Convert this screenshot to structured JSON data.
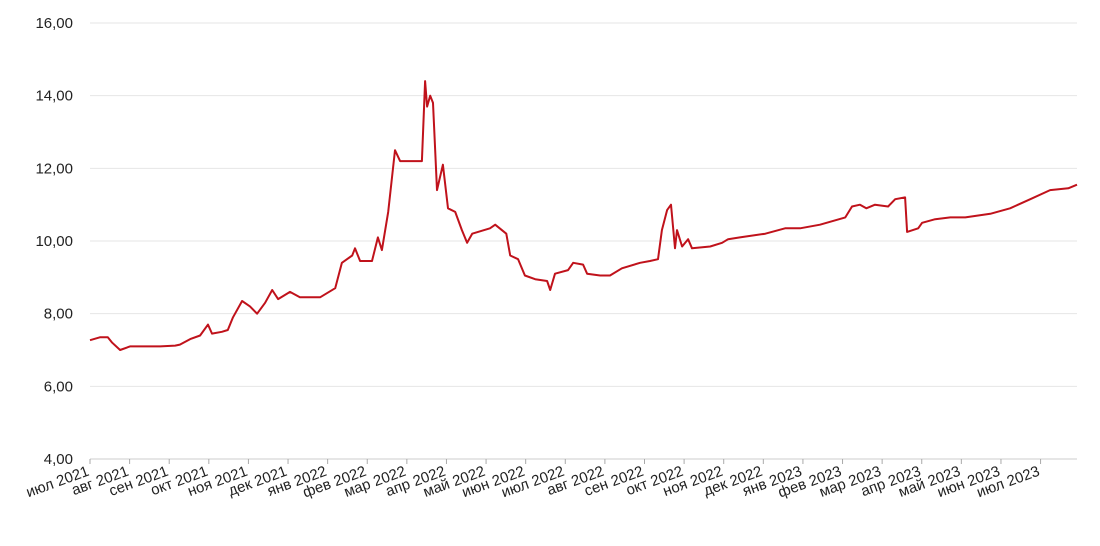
{
  "chart_data": {
    "type": "line",
    "color": "#c0121b",
    "grid": true,
    "x": [
      0,
      0.25,
      0.45,
      0.56,
      0.76,
      1.01,
      1.39,
      1.77,
      2.15,
      2.27,
      2.53,
      2.78,
      2.98,
      3.08,
      3.33,
      3.48,
      3.61,
      3.84,
      4.04,
      4.22,
      4.42,
      4.6,
      4.75,
      5.05,
      5.3,
      5.81,
      6.19,
      6.36,
      6.49,
      6.62,
      6.69,
      6.82,
      7.12,
      7.27,
      7.37,
      7.53,
      7.7,
      7.83,
      8.38,
      8.46,
      8.51,
      8.59,
      8.66,
      8.76,
      8.91,
      9.04,
      9.22,
      9.39,
      9.52,
      9.65,
      10.1,
      10.23,
      10.51,
      10.61,
      10.81,
      10.98,
      11.24,
      11.54,
      11.62,
      11.74,
      12.07,
      12.2,
      12.45,
      12.55,
      12.88,
      13.13,
      13.43,
      13.89,
      14.14,
      14.34,
      14.44,
      14.57,
      14.67,
      14.77,
      14.82,
      14.95,
      15.1,
      15.2,
      15.66,
      15.96,
      16.11,
      16.41,
      17.05,
      17.55,
      17.93,
      18.43,
      19.07,
      19.24,
      19.44,
      19.6,
      19.82,
      20.15,
      20.33,
      20.58,
      20.63,
      20.91,
      21.01,
      21.34,
      21.72,
      22.1,
      22.73,
      23.23,
      23.74,
      24.24,
      24.7,
      24.92
    ],
    "values": [
      7.27,
      7.35,
      7.35,
      7.2,
      7.0,
      7.1,
      7.1,
      7.1,
      7.12,
      7.15,
      7.3,
      7.4,
      7.7,
      7.45,
      7.5,
      7.55,
      7.9,
      8.35,
      8.2,
      8.0,
      8.3,
      8.65,
      8.4,
      8.6,
      8.45,
      8.45,
      8.7,
      9.4,
      9.5,
      9.6,
      9.8,
      9.45,
      9.45,
      10.1,
      9.75,
      10.8,
      12.5,
      12.2,
      12.2,
      14.4,
      13.7,
      14.0,
      13.8,
      11.4,
      12.1,
      10.9,
      10.8,
      10.3,
      9.95,
      10.2,
      10.35,
      10.45,
      10.2,
      9.6,
      9.5,
      9.05,
      8.95,
      8.9,
      8.65,
      9.1,
      9.2,
      9.4,
      9.35,
      9.1,
      9.05,
      9.05,
      9.25,
      9.4,
      9.45,
      9.5,
      10.3,
      10.85,
      11.0,
      9.8,
      10.3,
      9.85,
      10.05,
      9.8,
      9.85,
      9.95,
      10.05,
      10.1,
      10.2,
      10.35,
      10.35,
      10.45,
      10.65,
      10.95,
      11.0,
      10.9,
      11.0,
      10.95,
      11.15,
      11.2,
      10.25,
      10.35,
      10.5,
      10.6,
      10.65,
      10.65,
      10.75,
      10.9,
      11.15,
      11.4,
      11.45,
      11.55
    ],
    "xlim": [
      0,
      24.92
    ],
    "xticks": [
      {
        "value": 0,
        "label": "июл 2021"
      },
      {
        "value": 1,
        "label": "авг 2021"
      },
      {
        "value": 2,
        "label": "сен 2021"
      },
      {
        "value": 3,
        "label": "окт 2021"
      },
      {
        "value": 4,
        "label": "ноя 2021"
      },
      {
        "value": 5,
        "label": "дек 2021"
      },
      {
        "value": 6,
        "label": "янв 2022"
      },
      {
        "value": 7,
        "label": "фев 2022"
      },
      {
        "value": 8,
        "label": "мар 2022"
      },
      {
        "value": 9,
        "label": "апр 2022"
      },
      {
        "value": 10,
        "label": "май 2022"
      },
      {
        "value": 11,
        "label": "июн 2022"
      },
      {
        "value": 12,
        "label": "июл 2022"
      },
      {
        "value": 13,
        "label": "авг 2022"
      },
      {
        "value": 14,
        "label": "сен 2022"
      },
      {
        "value": 15,
        "label": "окт 2022"
      },
      {
        "value": 16,
        "label": "ноя 2022"
      },
      {
        "value": 17,
        "label": "дек 2022"
      },
      {
        "value": 18,
        "label": "янв 2023"
      },
      {
        "value": 19,
        "label": "фев 2023"
      },
      {
        "value": 20,
        "label": "мар 2023"
      },
      {
        "value": 21,
        "label": "апр 2023"
      },
      {
        "value": 22,
        "label": "май 2023"
      },
      {
        "value": 23,
        "label": "июн 2023"
      },
      {
        "value": 24,
        "label": "июл 2023"
      }
    ],
    "ylim": [
      4,
      16
    ],
    "yticks": [
      {
        "value": 4,
        "label": "4,00"
      },
      {
        "value": 6,
        "label": "6,00"
      },
      {
        "value": 8,
        "label": "8,00"
      },
      {
        "value": 10,
        "label": "10,00"
      },
      {
        "value": 12,
        "label": "12,00"
      },
      {
        "value": 14,
        "label": "14,00"
      },
      {
        "value": 16,
        "label": "16,00"
      }
    ]
  }
}
